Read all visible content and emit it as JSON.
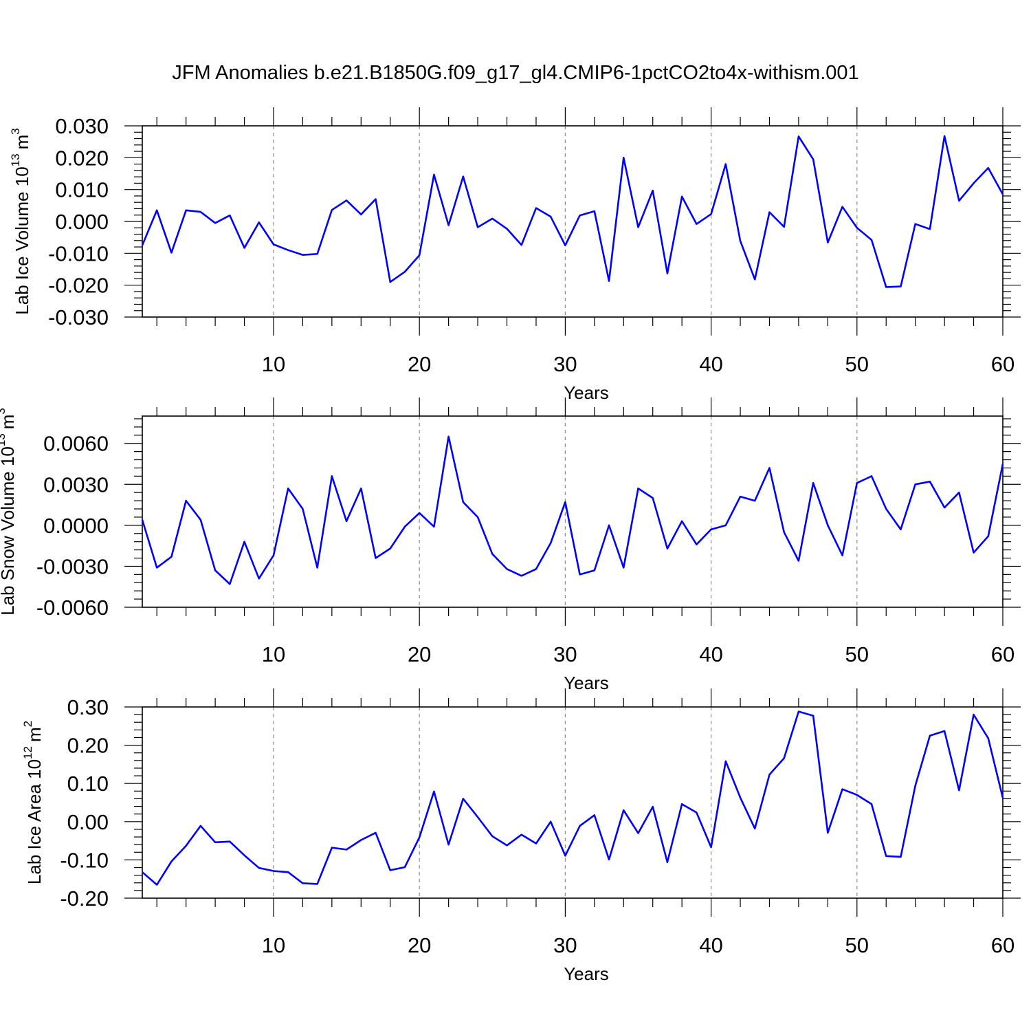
{
  "figure": {
    "title": "JFM Anomalies b.e21.B1850G.f09_g17_gl4.CMIP6-1pctCO2to4x-withism.001"
  },
  "chart_data": [
    {
      "type": "line",
      "title": "JFM Anomalies b.e21.B1850G.f09_g17_gl4.CMIP6-1pctCO2to4x-withism.001",
      "ylabel_text": "Lab Ice Volume 10",
      "ylabel_exp": "13",
      "ylabel_unit": "m",
      "ylabel_unit_exp": "3",
      "xlabel": "Years",
      "xlim": [
        1,
        60
      ],
      "ylim": [
        -0.03,
        0.03
      ],
      "xticks": [
        10,
        20,
        30,
        40,
        50,
        60
      ],
      "xtick_labels": [
        "10",
        "20",
        "30",
        "40",
        "50",
        "60"
      ],
      "yticks": [
        -0.03,
        -0.02,
        -0.01,
        0.0,
        0.01,
        0.02,
        0.03
      ],
      "ytick_labels": [
        "-0.030",
        "-0.020",
        "-0.010",
        "0.000",
        "0.010",
        "0.020",
        "0.030"
      ],
      "grid": "vertical dashed at x ticks",
      "line_color": "#0000ff",
      "x": [
        1,
        2,
        3,
        4,
        5,
        6,
        7,
        8,
        9,
        10,
        11,
        12,
        13,
        14,
        15,
        16,
        17,
        18,
        19,
        20,
        21,
        22,
        23,
        24,
        25,
        26,
        27,
        28,
        29,
        30,
        31,
        32,
        33,
        34,
        35,
        36,
        37,
        38,
        39,
        40,
        41,
        42,
        43,
        44,
        45,
        46,
        47,
        48,
        49,
        50,
        51,
        52,
        53,
        54,
        55,
        56,
        57,
        58,
        59,
        60
      ],
      "values": [
        -0.0075,
        0.0035,
        -0.0098,
        0.0035,
        0.003,
        -0.0005,
        0.0019,
        -0.0083,
        -0.0003,
        -0.0072,
        -0.009,
        -0.0105,
        -0.0102,
        0.0036,
        0.0066,
        0.0022,
        0.007,
        -0.019,
        -0.0158,
        -0.0106,
        0.0147,
        -0.0012,
        0.0141,
        -0.0018,
        0.0009,
        -0.0023,
        -0.0074,
        0.0042,
        0.0015,
        -0.0075,
        0.0019,
        0.0032,
        -0.0187,
        0.02,
        -0.0018,
        0.0097,
        -0.0163,
        0.0078,
        -0.0008,
        0.0023,
        0.018,
        -0.0061,
        -0.0182,
        0.0029,
        -0.0017,
        0.0267,
        0.0195,
        -0.0066,
        0.0046,
        -0.002,
        -0.0058,
        -0.0206,
        -0.0204,
        -0.0008,
        -0.0024,
        0.0268,
        0.0065,
        0.012,
        0.0168,
        0.0085
      ]
    },
    {
      "type": "line",
      "ylabel_text": "Lab Snow Volume 10",
      "ylabel_exp": "13",
      "ylabel_unit": "m",
      "ylabel_unit_exp": "3",
      "xlabel": "Years",
      "xlim": [
        1,
        60
      ],
      "ylim": [
        -0.006,
        0.008
      ],
      "xticks": [
        10,
        20,
        30,
        40,
        50,
        60
      ],
      "xtick_labels": [
        "10",
        "20",
        "30",
        "40",
        "50",
        "60"
      ],
      "yticks": [
        -0.006,
        -0.003,
        0.0,
        0.003,
        0.006
      ],
      "ytick_labels": [
        "-0.0060",
        "-0.0030",
        "0.0000",
        "0.0030",
        "0.0060"
      ],
      "grid": "vertical dashed at x ticks",
      "line_color": "#0000ff",
      "x": [
        1,
        2,
        3,
        4,
        5,
        6,
        7,
        8,
        9,
        10,
        11,
        12,
        13,
        14,
        15,
        16,
        17,
        18,
        19,
        20,
        21,
        22,
        23,
        24,
        25,
        26,
        27,
        28,
        29,
        30,
        31,
        32,
        33,
        34,
        35,
        36,
        37,
        38,
        39,
        40,
        41,
        42,
        43,
        44,
        45,
        46,
        47,
        48,
        49,
        50,
        51,
        52,
        53,
        54,
        55,
        56,
        57,
        58,
        59,
        60
      ],
      "values": [
        0.0004,
        -0.0031,
        -0.0023,
        0.0018,
        0.0004,
        -0.0033,
        -0.0043,
        -0.0012,
        -0.0039,
        -0.0022,
        0.0027,
        0.0012,
        -0.0031,
        0.0036,
        0.0003,
        0.0027,
        -0.0024,
        -0.0017,
        -0.0001,
        0.0009,
        -0.0001,
        0.0065,
        0.0017,
        0.0006,
        -0.0021,
        -0.0032,
        -0.0037,
        -0.0032,
        -0.0013,
        0.0017,
        -0.0036,
        -0.0033,
        0.0,
        -0.0031,
        0.0027,
        0.002,
        -0.0017,
        0.0003,
        -0.0014,
        -0.0003,
        0.0,
        0.0021,
        0.0018,
        0.0042,
        -0.0005,
        -0.0026,
        0.0031,
        0.0,
        -0.0022,
        0.0031,
        0.0036,
        0.0012,
        -0.0003,
        0.003,
        0.0032,
        0.0013,
        0.0024,
        -0.002,
        -0.0008,
        0.0045
      ]
    },
    {
      "type": "line",
      "ylabel_text": "Lab Ice Area 10",
      "ylabel_exp": "12",
      "ylabel_unit": "m",
      "ylabel_unit_exp": "2",
      "xlabel": "Years",
      "xlim": [
        1,
        60
      ],
      "ylim": [
        -0.2,
        0.3
      ],
      "xticks": [
        10,
        20,
        30,
        40,
        50,
        60
      ],
      "xtick_labels": [
        "10",
        "20",
        "30",
        "40",
        "50",
        "60"
      ],
      "yticks": [
        -0.2,
        -0.1,
        0.0,
        0.1,
        0.2,
        0.3
      ],
      "ytick_labels": [
        "-0.20",
        "-0.10",
        "0.00",
        "0.10",
        "0.20",
        "0.30"
      ],
      "grid": "vertical dashed at x ticks",
      "line_color": "#0000ff",
      "x": [
        1,
        2,
        3,
        4,
        5,
        6,
        7,
        8,
        9,
        10,
        11,
        12,
        13,
        14,
        15,
        16,
        17,
        18,
        19,
        20,
        21,
        22,
        23,
        24,
        25,
        26,
        27,
        28,
        29,
        30,
        31,
        32,
        33,
        34,
        35,
        36,
        37,
        38,
        39,
        40,
        41,
        42,
        43,
        44,
        45,
        46,
        47,
        48,
        49,
        50,
        51,
        52,
        53,
        54,
        55,
        56,
        57,
        58,
        59,
        60
      ],
      "values": [
        -0.132,
        -0.165,
        -0.104,
        -0.063,
        -0.011,
        -0.054,
        -0.052,
        -0.088,
        -0.121,
        -0.129,
        -0.132,
        -0.161,
        -0.163,
        -0.068,
        -0.073,
        -0.048,
        -0.029,
        -0.127,
        -0.119,
        -0.041,
        0.079,
        -0.06,
        0.06,
        0.012,
        -0.038,
        -0.062,
        -0.034,
        -0.057,
        0.0,
        -0.089,
        -0.011,
        0.017,
        -0.099,
        0.03,
        -0.03,
        0.039,
        -0.106,
        0.046,
        0.024,
        -0.067,
        0.158,
        0.063,
        -0.018,
        0.123,
        0.166,
        0.288,
        0.277,
        -0.029,
        0.085,
        0.07,
        0.046,
        -0.09,
        -0.092,
        0.094,
        0.225,
        0.237,
        0.082,
        0.28,
        0.218,
        0.062
      ]
    }
  ]
}
